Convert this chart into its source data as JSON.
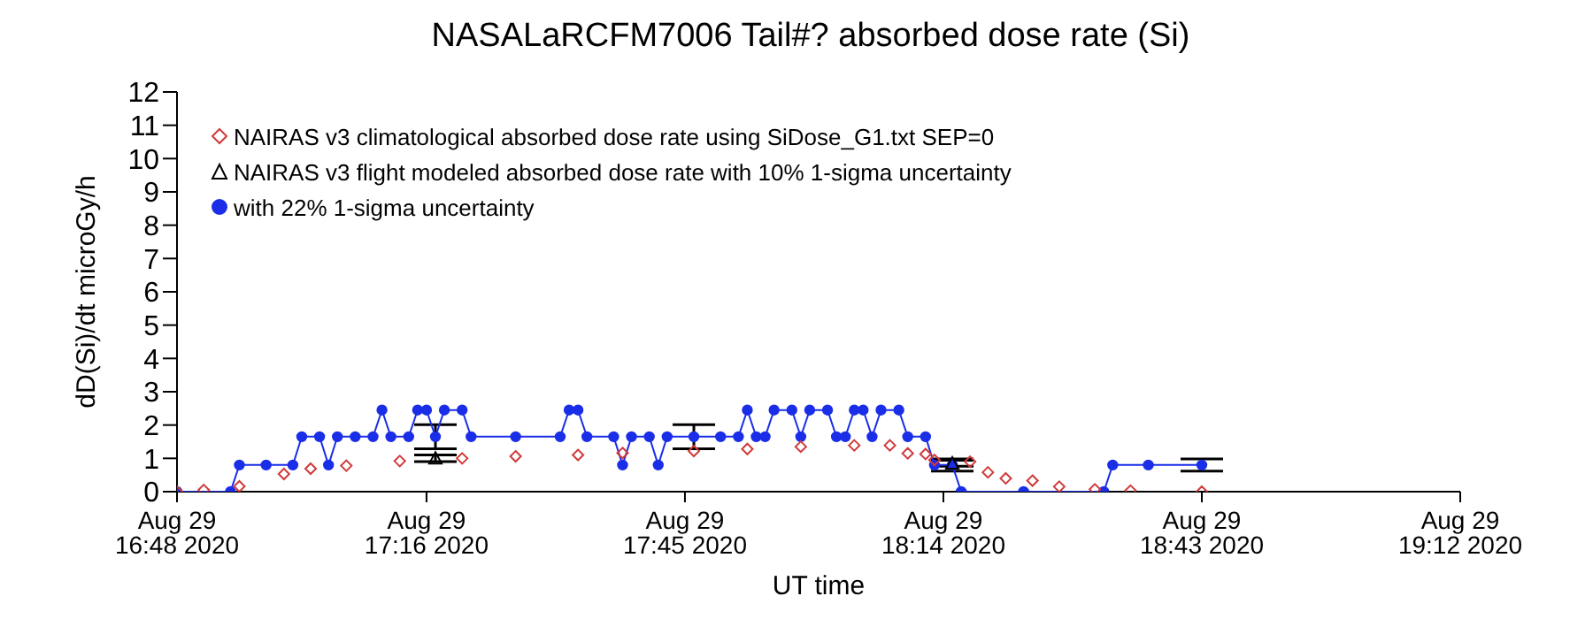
{
  "chart_data": {
    "type": "line",
    "title": "NASALaRCFM7006  Tail#? absorbed dose rate (Si)",
    "xlabel": "UT time",
    "ylabel": "dD(Si)/dt microGy/h",
    "xlim": [
      "2020-08-29T16:48",
      "2020-08-29T19:12"
    ],
    "xticks": [
      {
        "value": "2020-08-29T16:48",
        "label": "Aug 29\n16:48 2020"
      },
      {
        "value": "2020-08-29T17:16",
        "label": "Aug 29\n17:16 2020"
      },
      {
        "value": "2020-08-29T17:45",
        "label": "Aug 29\n17:45 2020"
      },
      {
        "value": "2020-08-29T18:14",
        "label": "Aug 29\n18:14 2020"
      },
      {
        "value": "2020-08-29T18:43",
        "label": "Aug 29\n18:43 2020"
      },
      {
        "value": "2020-08-29T19:12",
        "label": "Aug 29\n19:12 2020"
      }
    ],
    "ylim": [
      0,
      12
    ],
    "yticks": [
      0,
      1,
      2,
      3,
      4,
      5,
      6,
      7,
      8,
      9,
      10,
      11,
      12
    ],
    "grid": false,
    "legend": "top left",
    "series": [
      {
        "name": "NAIRAS v3 climatological absorbed dose rate using SiDose_G1.txt SEP=0",
        "type": "scatter",
        "marker": "diamond",
        "color": "#d03a3a",
        "x": [
          "2020-08-29T16:48",
          "2020-08-29T16:51",
          "2020-08-29T16:55",
          "2020-08-29T17:00",
          "2020-08-29T17:03",
          "2020-08-29T17:07",
          "2020-08-29T17:13",
          "2020-08-29T17:20",
          "2020-08-29T17:26",
          "2020-08-29T17:33",
          "2020-08-29T17:38",
          "2020-08-29T17:46",
          "2020-08-29T17:52",
          "2020-08-29T17:58",
          "2020-08-29T18:04",
          "2020-08-29T18:08",
          "2020-08-29T18:10",
          "2020-08-29T18:12",
          "2020-08-29T18:13",
          "2020-08-29T18:17",
          "2020-08-29T18:19",
          "2020-08-29T18:21",
          "2020-08-29T18:24",
          "2020-08-29T18:27",
          "2020-08-29T18:31",
          "2020-08-29T18:35",
          "2020-08-29T18:43"
        ],
        "values": [
          0,
          0.05,
          0.16,
          0.53,
          0.69,
          0.78,
          0.92,
          1.0,
          1.06,
          1.1,
          1.16,
          1.22,
          1.28,
          1.35,
          1.39,
          1.39,
          1.15,
          1.13,
          0.95,
          0.9,
          0.58,
          0.4,
          0.33,
          0.15,
          0.07,
          0.03,
          0
        ]
      },
      {
        "name": "NAIRAS v3 flight modeled absorbed dose rate with 10% 1-sigma uncertainty",
        "type": "scatter",
        "marker": "triangle",
        "color": "#000000",
        "x": [
          "2020-08-29T17:17",
          "2020-08-29T18:15"
        ],
        "values": [
          1.0,
          0.85
        ],
        "errors": [
          0.1,
          0.09
        ]
      },
      {
        "name": "with 22% 1-sigma uncertainty",
        "marker": "circle",
        "color": "#1a2ee8",
        "x": [
          "2020-08-29T16:48",
          "2020-08-29T16:54",
          "2020-08-29T16:55",
          "2020-08-29T16:58",
          "2020-08-29T17:01",
          "2020-08-29T17:02",
          "2020-08-29T17:04",
          "2020-08-29T17:05",
          "2020-08-29T17:06",
          "2020-08-29T17:08",
          "2020-08-29T17:10",
          "2020-08-29T17:11",
          "2020-08-29T17:12",
          "2020-08-29T17:14",
          "2020-08-29T17:15",
          "2020-08-29T17:16",
          "2020-08-29T17:17",
          "2020-08-29T17:18",
          "2020-08-29T17:20",
          "2020-08-29T17:21",
          "2020-08-29T17:26",
          "2020-08-29T17:31",
          "2020-08-29T17:32",
          "2020-08-29T17:33",
          "2020-08-29T17:34",
          "2020-08-29T17:37",
          "2020-08-29T17:38",
          "2020-08-29T17:39",
          "2020-08-29T17:41",
          "2020-08-29T17:42",
          "2020-08-29T17:43",
          "2020-08-29T17:46",
          "2020-08-29T17:49",
          "2020-08-29T17:51",
          "2020-08-29T17:52",
          "2020-08-29T17:53",
          "2020-08-29T17:54",
          "2020-08-29T17:55",
          "2020-08-29T17:57",
          "2020-08-29T17:58",
          "2020-08-29T17:59",
          "2020-08-29T18:01",
          "2020-08-29T18:02",
          "2020-08-29T18:03",
          "2020-08-29T18:04",
          "2020-08-29T18:05",
          "2020-08-29T18:06",
          "2020-08-29T18:07",
          "2020-08-29T18:09",
          "2020-08-29T18:10",
          "2020-08-29T18:12",
          "2020-08-29T18:13",
          "2020-08-29T18:15",
          "2020-08-29T18:16",
          "2020-08-29T18:23",
          "2020-08-29T18:32",
          "2020-08-29T18:33",
          "2020-08-29T18:37",
          "2020-08-29T18:43"
        ],
        "values": [
          0,
          0,
          0.8,
          0.8,
          0.8,
          1.65,
          1.65,
          0.8,
          1.65,
          1.65,
          1.65,
          2.45,
          1.65,
          1.65,
          2.45,
          2.45,
          1.65,
          2.45,
          2.45,
          1.65,
          1.65,
          1.65,
          2.45,
          2.45,
          1.65,
          1.65,
          0.8,
          1.65,
          1.65,
          0.8,
          1.65,
          1.65,
          1.65,
          1.65,
          2.45,
          1.65,
          1.65,
          2.45,
          2.45,
          1.65,
          2.45,
          2.45,
          1.65,
          1.65,
          2.45,
          2.45,
          1.65,
          2.45,
          2.45,
          1.65,
          1.65,
          0.8,
          0.8,
          0,
          0,
          0,
          0.8,
          0.8,
          0.8
        ],
        "errors": [
          null,
          null,
          null,
          null,
          null,
          null,
          null,
          null,
          null,
          null,
          null,
          null,
          null,
          null,
          null,
          null,
          0.36,
          null,
          null,
          null,
          null,
          null,
          null,
          null,
          null,
          null,
          null,
          null,
          null,
          null,
          null,
          0.36,
          null,
          null,
          null,
          null,
          null,
          null,
          null,
          null,
          null,
          null,
          null,
          null,
          null,
          null,
          null,
          null,
          null,
          null,
          null,
          null,
          0.18,
          null,
          null,
          null,
          null,
          null,
          0.18
        ]
      }
    ]
  }
}
